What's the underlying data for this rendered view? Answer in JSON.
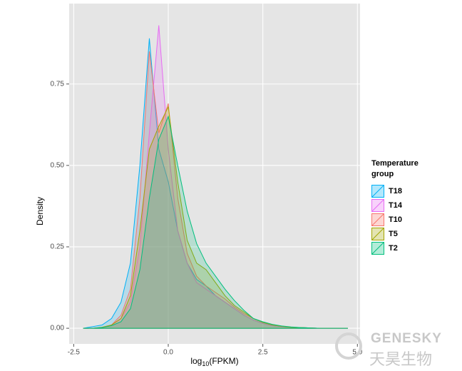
{
  "chart_data": {
    "type": "density",
    "xlabel": [
      "log",
      "10",
      "(FPKM)"
    ],
    "ylabel": "Density",
    "legend_title": "Temperature group",
    "legend_position": "right",
    "grid": true,
    "xlim": [
      -2.62,
      5.07
    ],
    "ylim": [
      -0.048,
      0.997
    ],
    "xticks": [
      -2.5,
      {
        "value": 0,
        "label": "0.0"
      },
      2.5,
      {
        "value": 5,
        "label": "5.0"
      }
    ],
    "yticks": [
      {
        "value": 0,
        "label": "0.00"
      },
      0.25,
      {
        "value": 0.5,
        "label": "0.50"
      },
      0.75
    ],
    "x": [
      -2.25,
      -2.0,
      -1.75,
      -1.5,
      -1.25,
      -1.0,
      -0.75,
      -0.5,
      -0.25,
      0,
      0.25,
      0.5,
      0.75,
      1.0,
      1.25,
      1.5,
      1.75,
      2.0,
      2.25,
      2.5,
      2.75,
      3.0,
      3.25,
      3.5,
      3.75,
      4.0,
      4.25,
      4.5,
      4.75
    ],
    "series": [
      {
        "name": "T18",
        "color": "#00B0F6",
        "values": [
          0,
          0.005,
          0.01,
          0.03,
          0.08,
          0.2,
          0.5,
          0.89,
          0.55,
          0.45,
          0.3,
          0.2,
          0.15,
          0.13,
          0.1,
          0.08,
          0.06,
          0.04,
          0.025,
          0.015,
          0.008,
          0.005,
          0.003,
          0.002,
          0.001,
          0,
          0,
          0,
          0
        ]
      },
      {
        "name": "T14",
        "color": "#E76BF3",
        "values": [
          0,
          0,
          0.002,
          0.01,
          0.03,
          0.08,
          0.25,
          0.6,
          0.93,
          0.55,
          0.3,
          0.2,
          0.14,
          0.12,
          0.1,
          0.08,
          0.06,
          0.04,
          0.025,
          0.015,
          0.008,
          0.005,
          0.003,
          0.002,
          0.001,
          0,
          0,
          0,
          0
        ]
      },
      {
        "name": "T10",
        "color": "#F8766D",
        "values": [
          0,
          0,
          0.003,
          0.01,
          0.04,
          0.12,
          0.4,
          0.85,
          0.6,
          0.69,
          0.4,
          0.23,
          0.16,
          0.13,
          0.11,
          0.09,
          0.065,
          0.045,
          0.03,
          0.018,
          0.01,
          0.006,
          0.003,
          0.002,
          0.001,
          0,
          0,
          0,
          0
        ]
      },
      {
        "name": "T5",
        "color": "#A3A500",
        "values": [
          0,
          0,
          0.003,
          0.01,
          0.03,
          0.1,
          0.3,
          0.55,
          0.62,
          0.68,
          0.45,
          0.27,
          0.2,
          0.18,
          0.14,
          0.1,
          0.07,
          0.05,
          0.03,
          0.018,
          0.01,
          0.006,
          0.003,
          0.002,
          0.001,
          0,
          0,
          0,
          0
        ]
      },
      {
        "name": "T2",
        "color": "#00BF7D",
        "values": [
          0,
          0,
          0.002,
          0.008,
          0.02,
          0.06,
          0.18,
          0.4,
          0.58,
          0.65,
          0.5,
          0.36,
          0.26,
          0.2,
          0.16,
          0.12,
          0.085,
          0.055,
          0.03,
          0.02,
          0.012,
          0.007,
          0.004,
          0.002,
          0.001,
          0,
          0,
          0,
          0
        ]
      }
    ]
  },
  "watermark": {
    "en": "GENESKY",
    "cn": "天昊生物"
  }
}
